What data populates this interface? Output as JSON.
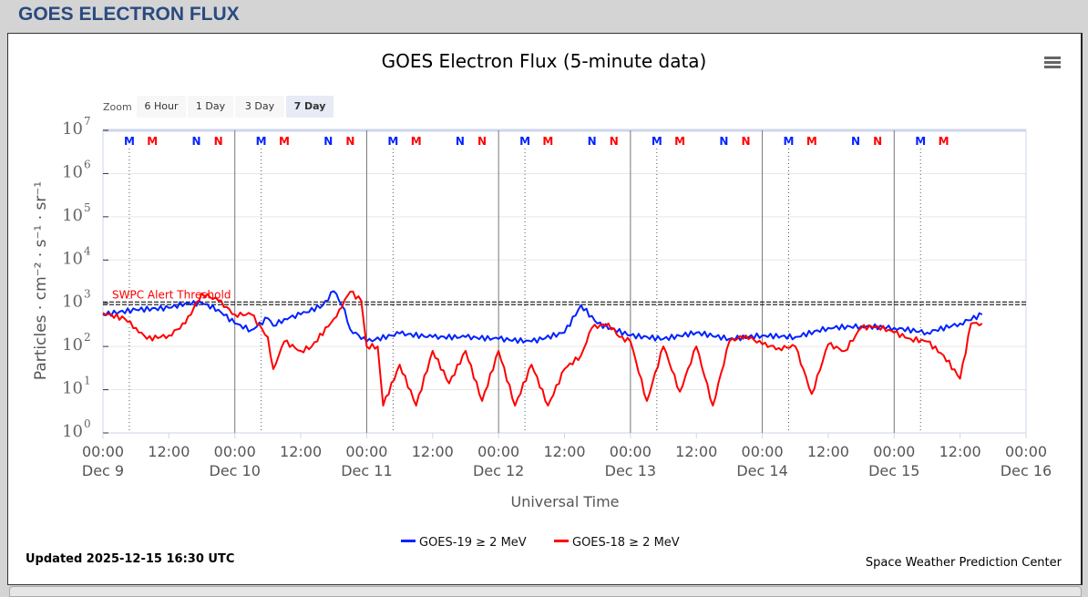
{
  "page_title": "GOES ELECTRON FLUX",
  "menu_icon": "hamburger-menu-icon",
  "zoom": {
    "label": "Zoom",
    "buttons": [
      "6 Hour",
      "1 Day",
      "3 Day",
      "7 Day"
    ],
    "selected": "7 Day"
  },
  "footer": {
    "updated": "Updated 2025-12-15 16:30 UTC",
    "credit": "Space Weather Prediction Center"
  },
  "chart_data": {
    "type": "line",
    "title": "GOES Electron Flux (5-minute data)",
    "xlabel": "Universal Time",
    "ylabel": "Particles · cm⁻² · s⁻¹ · sr⁻¹",
    "yscale": "log",
    "ylim": [
      1,
      10000000
    ],
    "ytick_exponents": [
      0,
      1,
      2,
      3,
      4,
      5,
      6,
      7
    ],
    "x_unit": "hours since Dec 9 00:00 UTC",
    "xlim": [
      0,
      168
    ],
    "xticks": [
      {
        "time": "00:00",
        "date": "Dec 9"
      },
      {
        "time": "12:00",
        "date": ""
      },
      {
        "time": "00:00",
        "date": "Dec 10"
      },
      {
        "time": "12:00",
        "date": ""
      },
      {
        "time": "00:00",
        "date": "Dec 11"
      },
      {
        "time": "12:00",
        "date": ""
      },
      {
        "time": "00:00",
        "date": "Dec 12"
      },
      {
        "time": "12:00",
        "date": ""
      },
      {
        "time": "00:00",
        "date": "Dec 13"
      },
      {
        "time": "12:00",
        "date": ""
      },
      {
        "time": "00:00",
        "date": "Dec 14"
      },
      {
        "time": "12:00",
        "date": ""
      },
      {
        "time": "00:00",
        "date": "Dec 15"
      },
      {
        "time": "12:00",
        "date": ""
      },
      {
        "time": "00:00",
        "date": "Dec 16"
      }
    ],
    "threshold": {
      "label": "SWPC Alert Threshold",
      "value": 1000
    },
    "legend_position": "bottom-center",
    "markers": [
      {
        "h": 4.8,
        "label": "M",
        "color": "#0022ff"
      },
      {
        "h": 9,
        "label": "M",
        "color": "#ff0000"
      },
      {
        "h": 17,
        "label": "N",
        "color": "#0022ff"
      },
      {
        "h": 21,
        "label": "N",
        "color": "#ff0000"
      },
      {
        "h": 28.8,
        "label": "M",
        "color": "#0022ff"
      },
      {
        "h": 33,
        "label": "M",
        "color": "#ff0000"
      },
      {
        "h": 41,
        "label": "N",
        "color": "#0022ff"
      },
      {
        "h": 45,
        "label": "N",
        "color": "#ff0000"
      },
      {
        "h": 52.8,
        "label": "M",
        "color": "#0022ff"
      },
      {
        "h": 57,
        "label": "M",
        "color": "#ff0000"
      },
      {
        "h": 65,
        "label": "N",
        "color": "#0022ff"
      },
      {
        "h": 69,
        "label": "N",
        "color": "#ff0000"
      },
      {
        "h": 76.8,
        "label": "M",
        "color": "#0022ff"
      },
      {
        "h": 81,
        "label": "M",
        "color": "#ff0000"
      },
      {
        "h": 89,
        "label": "N",
        "color": "#0022ff"
      },
      {
        "h": 93,
        "label": "N",
        "color": "#ff0000"
      },
      {
        "h": 100.8,
        "label": "M",
        "color": "#0022ff"
      },
      {
        "h": 105,
        "label": "M",
        "color": "#ff0000"
      },
      {
        "h": 113,
        "label": "N",
        "color": "#0022ff"
      },
      {
        "h": 117,
        "label": "N",
        "color": "#ff0000"
      },
      {
        "h": 124.8,
        "label": "M",
        "color": "#0022ff"
      },
      {
        "h": 129,
        "label": "M",
        "color": "#ff0000"
      },
      {
        "h": 137,
        "label": "N",
        "color": "#0022ff"
      },
      {
        "h": 141,
        "label": "N",
        "color": "#ff0000"
      },
      {
        "h": 148.8,
        "label": "M",
        "color": "#0022ff"
      },
      {
        "h": 153,
        "label": "M",
        "color": "#ff0000"
      }
    ],
    "series": [
      {
        "name": "GOES-19 ≥ 2 MeV",
        "color": "#0022ff",
        "points": [
          [
            0,
            550
          ],
          [
            6,
            710
          ],
          [
            12,
            780
          ],
          [
            15,
            1000
          ],
          [
            18,
            1000
          ],
          [
            21,
            710
          ],
          [
            24,
            340
          ],
          [
            27,
            240
          ],
          [
            30,
            450
          ],
          [
            31,
            300
          ],
          [
            33,
            435
          ],
          [
            36,
            550
          ],
          [
            40,
            900
          ],
          [
            42,
            1900
          ],
          [
            44,
            710
          ],
          [
            45,
            250
          ],
          [
            48,
            130
          ],
          [
            54,
            200
          ],
          [
            60,
            165
          ],
          [
            66,
            165
          ],
          [
            72,
            150
          ],
          [
            78,
            130
          ],
          [
            84,
            210
          ],
          [
            87,
            900
          ],
          [
            90,
            340
          ],
          [
            96,
            180
          ],
          [
            102,
            150
          ],
          [
            108,
            210
          ],
          [
            114,
            150
          ],
          [
            120,
            180
          ],
          [
            126,
            165
          ],
          [
            132,
            270
          ],
          [
            138,
            295
          ],
          [
            144,
            270
          ],
          [
            150,
            210
          ],
          [
            156,
            340
          ],
          [
            160,
            550
          ]
        ]
      },
      {
        "name": "GOES-18 ≥ 2 MeV",
        "color": "#ff0000",
        "points": [
          [
            0,
            600
          ],
          [
            4,
            435
          ],
          [
            6,
            270
          ],
          [
            8,
            150
          ],
          [
            12,
            180
          ],
          [
            15,
            340
          ],
          [
            18,
            1700
          ],
          [
            21,
            1150
          ],
          [
            24,
            550
          ],
          [
            27,
            550
          ],
          [
            30,
            165
          ],
          [
            31,
            30
          ],
          [
            33,
            130
          ],
          [
            36,
            79
          ],
          [
            38,
            100
          ],
          [
            42,
            435
          ],
          [
            43,
            710
          ],
          [
            45,
            1850
          ],
          [
            47,
            1150
          ],
          [
            48,
            100
          ],
          [
            50,
            100
          ],
          [
            51,
            4.3
          ],
          [
            54,
            38
          ],
          [
            57,
            4.3
          ],
          [
            60,
            79
          ],
          [
            63,
            14
          ],
          [
            66,
            79
          ],
          [
            69,
            5.5
          ],
          [
            72,
            79
          ],
          [
            75,
            4.3
          ],
          [
            78,
            38
          ],
          [
            81,
            4.3
          ],
          [
            84,
            30
          ],
          [
            87,
            62
          ],
          [
            89,
            270
          ],
          [
            92,
            340
          ],
          [
            94,
            165
          ],
          [
            96,
            130
          ],
          [
            99,
            5.5
          ],
          [
            102,
            100
          ],
          [
            105,
            9
          ],
          [
            108,
            100
          ],
          [
            111,
            4.3
          ],
          [
            114,
            130
          ],
          [
            117,
            180
          ],
          [
            120,
            112
          ],
          [
            123,
            92
          ],
          [
            126,
            100
          ],
          [
            129,
            8
          ],
          [
            132,
            112
          ],
          [
            135,
            79
          ],
          [
            138,
            270
          ],
          [
            141,
            295
          ],
          [
            144,
            210
          ],
          [
            147,
            150
          ],
          [
            150,
            130
          ],
          [
            153,
            62
          ],
          [
            156,
            18
          ],
          [
            158,
            340
          ],
          [
            160,
            340
          ]
        ]
      }
    ]
  }
}
